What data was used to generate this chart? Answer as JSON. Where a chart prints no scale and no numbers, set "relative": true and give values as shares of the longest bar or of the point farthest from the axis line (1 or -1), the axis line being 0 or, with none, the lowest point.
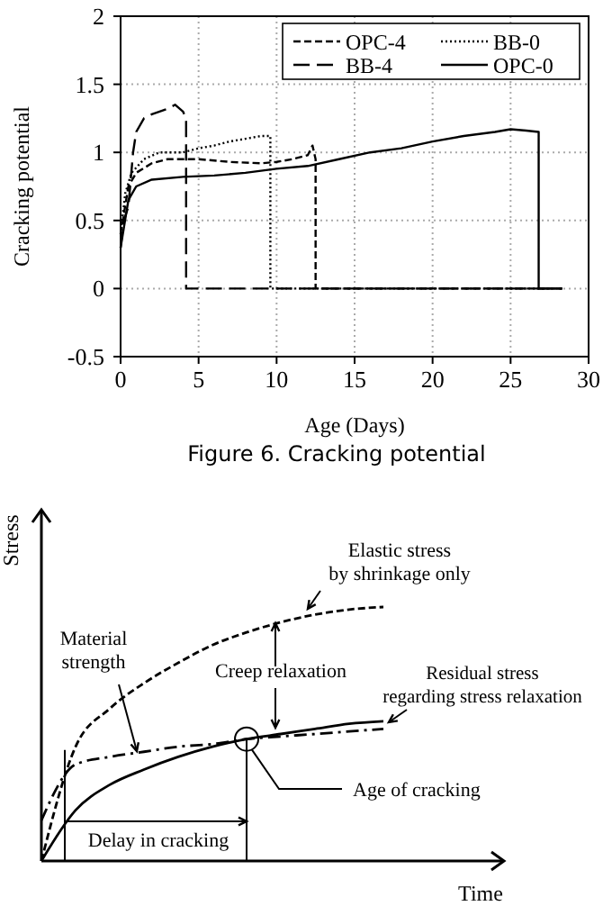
{
  "chart_data": [
    {
      "type": "line",
      "title": "Figure 6. Cracking potential",
      "xlabel": "Age (Days)",
      "ylabel": "Cracking potential",
      "xlim": [
        0,
        30
      ],
      "xticks": [
        0,
        5,
        10,
        15,
        20,
        25,
        30
      ],
      "ylim": [
        -0.5,
        2
      ],
      "yticks": [
        -0.5,
        0,
        0.5,
        1,
        1.5,
        2
      ],
      "grid": true,
      "legend": "top right",
      "series": [
        {
          "name": "OPC-4",
          "color": "#000000",
          "line_style": "dashed",
          "x": [
            0,
            0.5,
            1,
            2,
            3,
            5,
            7,
            9,
            10,
            11,
            12,
            12.3,
            12.5,
            12.5,
            28.3
          ],
          "values": [
            0.4,
            0.75,
            0.85,
            0.92,
            0.95,
            0.95,
            0.93,
            0.92,
            0.93,
            0.95,
            0.98,
            1.05,
            0.95,
            0,
            0
          ]
        },
        {
          "name": "BB-0",
          "color": "#000000",
          "line_style": "dotted",
          "x": [
            0,
            0.3,
            0.7,
            1.5,
            2.5,
            4,
            5,
            6,
            7,
            8,
            9,
            9.6,
            9.6,
            28.3
          ],
          "values": [
            0.4,
            0.7,
            0.85,
            0.95,
            1.0,
            1.0,
            1.03,
            1.05,
            1.08,
            1.1,
            1.12,
            1.12,
            0,
            0
          ]
        },
        {
          "name": "BB-4",
          "color": "#000000",
          "line_style": "longdash",
          "x": [
            0,
            0.2,
            0.5,
            0.8,
            1,
            1.5,
            2,
            2.5,
            3,
            3.5,
            4,
            4.2,
            4.2,
            28.3
          ],
          "values": [
            0.3,
            0.5,
            0.6,
            1.0,
            1.15,
            1.25,
            1.28,
            1.3,
            1.32,
            1.35,
            1.3,
            1.25,
            0,
            0
          ]
        },
        {
          "name": "OPC-0",
          "color": "#000000",
          "line_style": "solid",
          "x": [
            0,
            0.5,
            1,
            2,
            4,
            6,
            8,
            10,
            12,
            14,
            16,
            18,
            20,
            22,
            24,
            25,
            26,
            26.8,
            26.8,
            28.3
          ],
          "values": [
            0.3,
            0.65,
            0.75,
            0.8,
            0.82,
            0.83,
            0.85,
            0.88,
            0.9,
            0.95,
            1.0,
            1.03,
            1.08,
            1.12,
            1.15,
            1.17,
            1.16,
            1.15,
            0,
            0
          ]
        }
      ]
    },
    {
      "type": "line",
      "relative": true,
      "xlabel": "Time",
      "ylabel": "Stress",
      "categories": [
        null,
        null,
        null,
        null,
        null,
        null,
        null,
        null,
        null,
        null,
        null
      ],
      "annotations": [
        "Elastic stress\nby shrinkage only",
        "Material\nstrength",
        "Creep relaxation",
        "Residual stress\nregarding stress relaxation",
        "Age of cracking",
        "Delay in cracking"
      ],
      "series": [
        {
          "color": "#000000",
          "line_style": "dashed",
          "values": [
            0,
            0.45,
            0.6,
            0.7,
            0.78,
            0.85,
            0.9,
            0.94,
            0.97,
            0.99,
            1.0
          ]
        },
        {
          "color": "#000000",
          "line_style": "dashdot",
          "values": [
            0.16,
            0.38,
            0.41,
            0.43,
            0.45,
            0.46,
            0.48,
            0.49,
            0.5,
            0.51,
            0.52
          ]
        },
        {
          "color": "#000000",
          "line_style": "solid",
          "values": [
            0,
            0.2,
            0.3,
            0.36,
            0.41,
            0.45,
            0.48,
            0.5,
            0.52,
            0.54,
            0.55
          ]
        }
      ]
    }
  ]
}
